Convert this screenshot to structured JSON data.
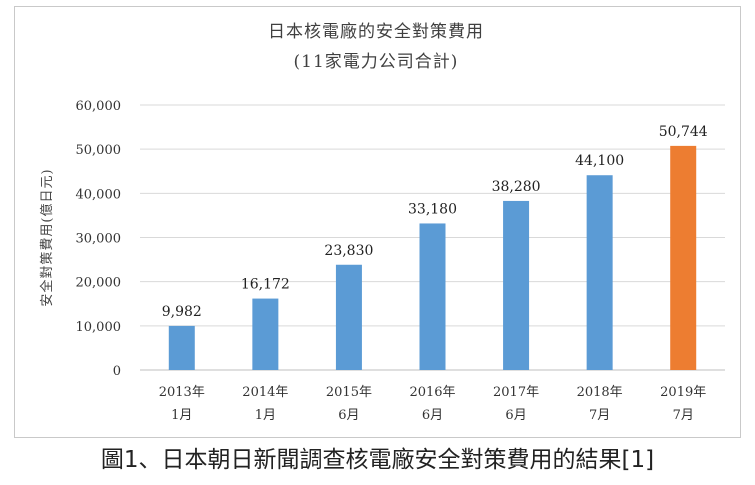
{
  "caption": "圖1、日本朝日新聞調查核電廠安全對策費用的結果[1]",
  "colors": {
    "bar": "#5b9bd5",
    "highlight": "#ed7d31",
    "grid": "#d9d9d9"
  },
  "chart_data": {
    "type": "bar",
    "title": "日本核電廠的安全對策費用",
    "subtitle": "(11家電力公司合計)",
    "xlabel": "",
    "ylabel": "安全對策費用(億日元)",
    "ylim": [
      0,
      60000
    ],
    "yticks": [
      "0",
      "10,000",
      "20,000",
      "30,000",
      "40,000",
      "50,000",
      "60,000"
    ],
    "ytick_values": [
      0,
      10000,
      20000,
      30000,
      40000,
      50000,
      60000
    ],
    "grid": true,
    "categories": [
      [
        "2013年",
        "1月"
      ],
      [
        "2014年",
        "1月"
      ],
      [
        "2015年",
        "6月"
      ],
      [
        "2016年",
        "6月"
      ],
      [
        "2017年",
        "6月"
      ],
      [
        "2018年",
        "7月"
      ],
      [
        "2019年",
        "7月"
      ]
    ],
    "values": [
      9982,
      16172,
      23830,
      33180,
      38280,
      44100,
      50744
    ],
    "data_labels": [
      "9,982",
      "16,172",
      "23,830",
      "33,180",
      "38,280",
      "44,100",
      "50,744"
    ],
    "highlight_index": 6
  }
}
